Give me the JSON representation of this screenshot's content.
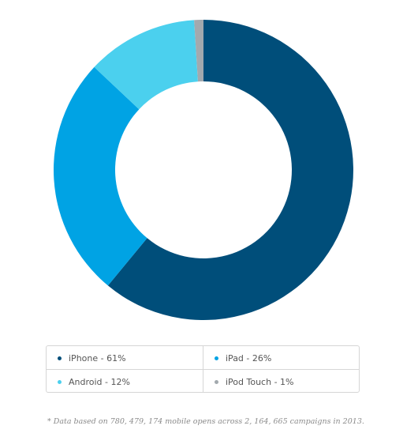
{
  "chart_data": {
    "type": "pie",
    "donut": true,
    "title": "",
    "categories": [
      "iPhone",
      "iPad",
      "Android",
      "iPod Touch"
    ],
    "values": [
      61,
      26,
      12,
      1
    ],
    "unit": "%",
    "colors": [
      "#004e7a",
      "#00a3e4",
      "#4bd0ee",
      "#a2a9ae"
    ],
    "legend_placement": "bottom"
  },
  "legend": {
    "items": [
      {
        "label": "iPhone - 61%",
        "color": "#004e7a"
      },
      {
        "label": "iPad - 26%",
        "color": "#00a3e4"
      },
      {
        "label": "Android - 12%",
        "color": "#4bd0ee"
      },
      {
        "label": "iPod Touch - 1%",
        "color": "#a2a9ae"
      }
    ]
  },
  "footnote": "* Data based on 780, 479, 174 mobile opens across 2, 164, 665 campaigns in 2013."
}
